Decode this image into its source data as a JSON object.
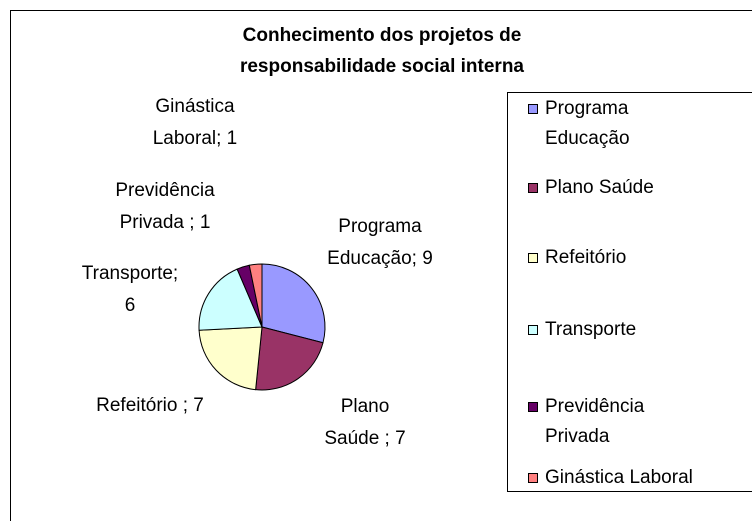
{
  "chart_data": {
    "type": "pie",
    "title": "Conhecimento dos projetos de responsabilidade social interna",
    "categories": [
      "Programa Educação",
      "Plano Saúde",
      "Refeitório",
      "Transporte",
      "Previdência Privada",
      "Ginástica Laboral"
    ],
    "values": [
      9,
      7,
      7,
      6,
      1,
      1
    ],
    "value_labels": [
      "Programa Educação; 9",
      "Plano Saúde ; 7",
      "Refeitório ; 7",
      "Transporte; 6",
      "Previdência Privada ; 1",
      "Ginástica Laboral; 1"
    ],
    "colors": [
      "#9999ff",
      "#993366",
      "#ffffcc",
      "#ccffff",
      "#660066",
      "#ff8080"
    ],
    "legend": "right"
  }
}
